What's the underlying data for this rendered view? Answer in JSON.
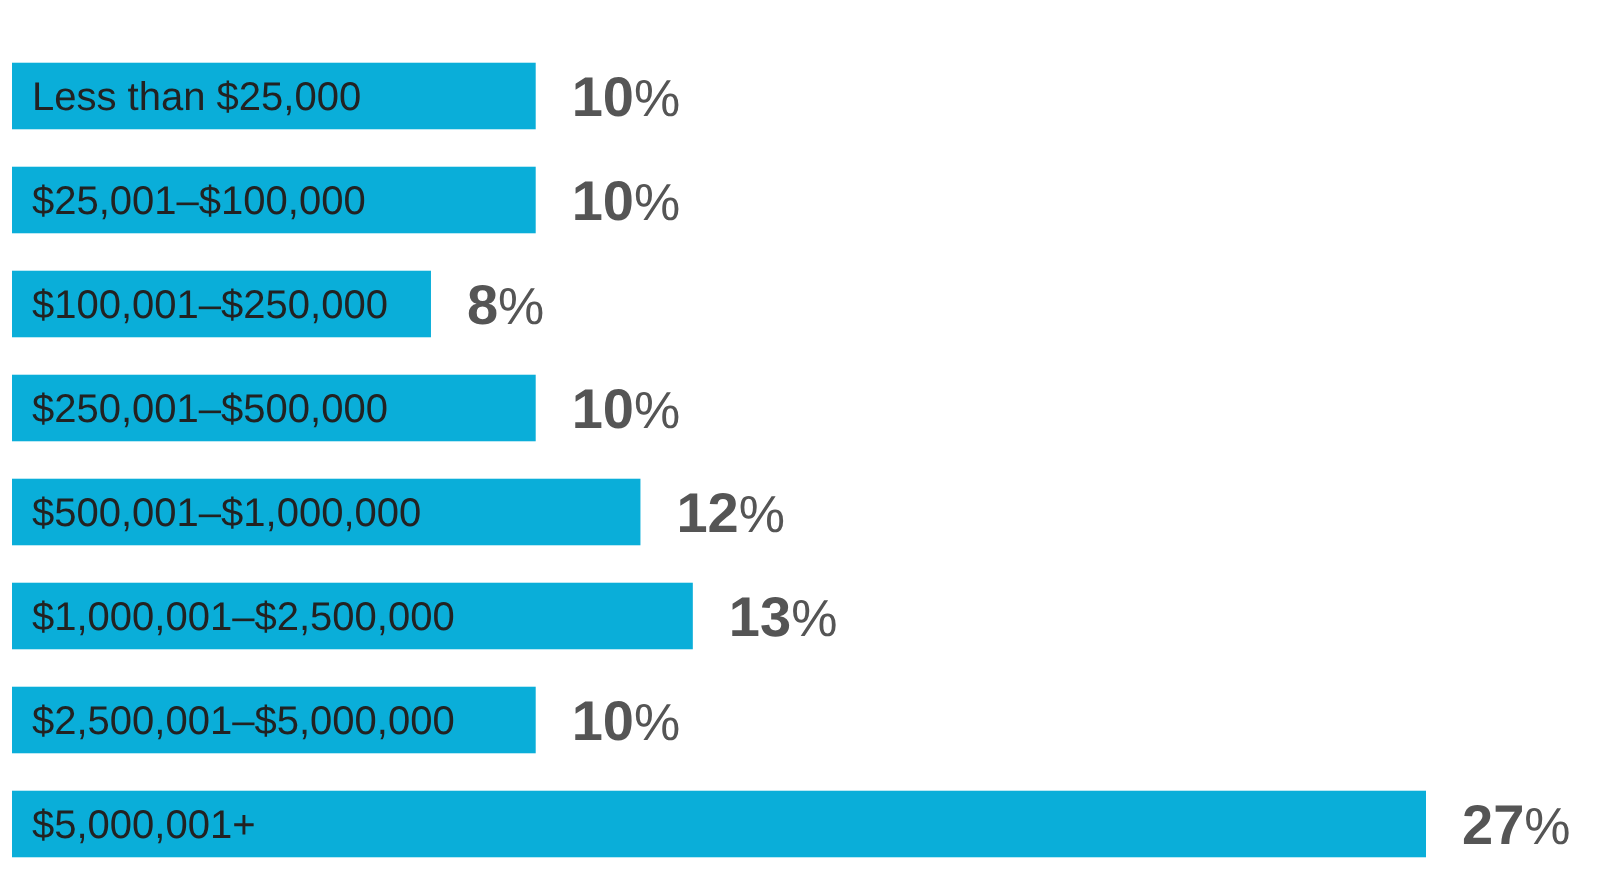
{
  "chart_data": {
    "type": "bar",
    "orientation": "horizontal",
    "categories": [
      "Less than $25,000",
      "$25,001–$100,000",
      "$100,001–$250,000",
      "$250,001–$500,000",
      "$500,001–$1,000,000",
      "$1,000,001–$2,500,000",
      "$2,500,001–$5,000,000",
      "$5,000,001+"
    ],
    "values": [
      10,
      10,
      8,
      10,
      12,
      13,
      10,
      27
    ],
    "value_labels": [
      "10%",
      "10%",
      "8%",
      "10%",
      "12%",
      "13%",
      "10%",
      "27%"
    ],
    "color": "#0aaed9"
  }
}
